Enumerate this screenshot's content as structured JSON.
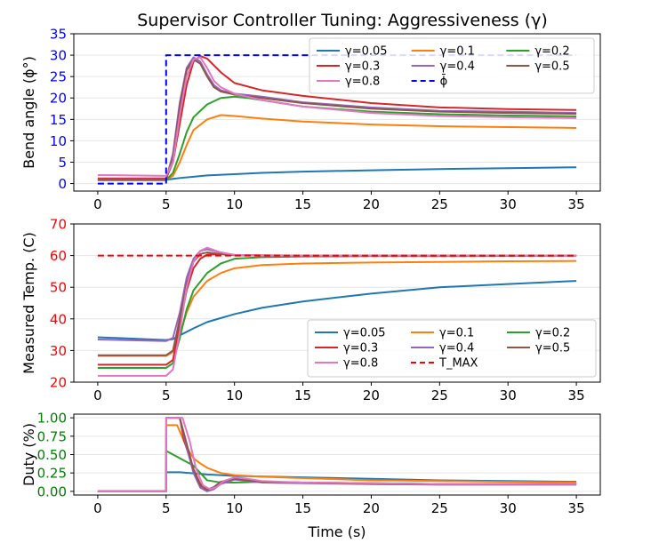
{
  "figure": {
    "title": "Supervisor Controller Tuning: Aggressiveness (γ)",
    "xlabel": "Time (s)"
  },
  "colors": {
    "g005": "#1f77b4",
    "g01": "#ff7f0e",
    "g02": "#2ca02c",
    "g03": "#d62728",
    "g04": "#9467bd",
    "g05": "#8c564b",
    "g08": "#e377c2",
    "ref_angle": "#0000ff",
    "ref_temp": "#ff0000",
    "duty_ticks": "#008000"
  },
  "chart_data": [
    {
      "type": "line",
      "id": "bend",
      "ylabel": "Bend angle (ϕ°)",
      "tick_color": "#0000ff",
      "xlim": [
        -1.75,
        36.75
      ],
      "ylim": [
        -1.75,
        35
      ],
      "xticks": [
        0,
        5,
        10,
        15,
        20,
        25,
        30,
        35
      ],
      "yticks": [
        0,
        5,
        10,
        15,
        20,
        25,
        30,
        35
      ],
      "legend": {
        "position": "top-right",
        "columns": 3
      },
      "series": [
        {
          "name": "γ=0.05",
          "color_key": "g005",
          "style": "solid",
          "x": [
            0,
            5,
            5.5,
            6,
            7,
            8,
            10,
            12,
            15,
            20,
            25,
            30,
            35
          ],
          "y": [
            0.9,
            0.9,
            1.1,
            1.3,
            1.6,
            1.9,
            2.2,
            2.5,
            2.8,
            3.1,
            3.4,
            3.6,
            3.8
          ]
        },
        {
          "name": "γ=0.1",
          "color_key": "g01",
          "style": "solid",
          "x": [
            0,
            5,
            5.5,
            6,
            6.5,
            7,
            8,
            9,
            10,
            12,
            15,
            20,
            25,
            30,
            35
          ],
          "y": [
            0.9,
            0.9,
            1.8,
            5,
            9,
            12.5,
            15,
            16,
            15.8,
            15.2,
            14.5,
            13.8,
            13.4,
            13.2,
            13
          ]
        },
        {
          "name": "γ=0.2",
          "color_key": "g02",
          "style": "solid",
          "x": [
            0,
            5,
            5.5,
            6,
            6.5,
            7,
            8,
            9,
            10,
            11,
            12,
            15,
            20,
            25,
            30,
            35
          ],
          "y": [
            0.8,
            0.8,
            2.5,
            7,
            12,
            15.5,
            18.5,
            20,
            20.3,
            20,
            19.5,
            18,
            16.8,
            16.2,
            15.9,
            15.7
          ]
        },
        {
          "name": "γ=0.3",
          "color_key": "g03",
          "style": "solid",
          "x": [
            0,
            5,
            5.5,
            6,
            6.5,
            7,
            7.5,
            8,
            9,
            10,
            12,
            15,
            20,
            25,
            30,
            35
          ],
          "y": [
            1.2,
            1.2,
            5,
            14,
            23,
            28.5,
            29.8,
            29.2,
            26,
            23.5,
            21.8,
            20.5,
            18.8,
            17.8,
            17.4,
            17.2
          ]
        },
        {
          "name": "γ=0.4",
          "color_key": "g04",
          "style": "solid",
          "x": [
            0,
            5,
            5.5,
            6,
            6.5,
            7,
            7.5,
            8,
            8.5,
            9,
            10,
            12,
            15,
            20,
            25,
            30,
            35
          ],
          "y": [
            1,
            1,
            7,
            19,
            27,
            29.5,
            28.5,
            25.5,
            23,
            21.8,
            21,
            20.3,
            19,
            17.8,
            17,
            16.8,
            16.5
          ]
        },
        {
          "name": "γ=0.5",
          "color_key": "g05",
          "style": "solid",
          "x": [
            0,
            5,
            5.5,
            6,
            6.5,
            7,
            7.5,
            8,
            8.5,
            9,
            10,
            12,
            15,
            20,
            25,
            30,
            35
          ],
          "y": [
            0.9,
            0.9,
            6,
            18,
            26.5,
            29,
            28,
            25,
            22.5,
            21.5,
            20.8,
            20,
            18.8,
            17.5,
            16.8,
            16.5,
            16.3
          ]
        },
        {
          "name": "γ=0.8",
          "color_key": "g08",
          "style": "solid",
          "x": [
            0,
            5,
            5.5,
            6,
            6.5,
            7,
            7.5,
            8,
            8.5,
            9,
            10,
            12,
            15,
            20,
            25,
            30,
            35
          ],
          "y": [
            2,
            1.8,
            5,
            16,
            25,
            29,
            29.5,
            27,
            24,
            22.5,
            21,
            19.5,
            18,
            16.5,
            15.8,
            15.5,
            15.3
          ]
        },
        {
          "name": "ϕ̄",
          "color_key": "ref_angle",
          "style": "dashed",
          "x": [
            0,
            5,
            5,
            35
          ],
          "y": [
            0,
            0,
            30,
            30
          ]
        }
      ]
    },
    {
      "type": "line",
      "id": "temp",
      "ylabel": "Measured Temp. (C)",
      "tick_color": "#ff0000",
      "xlim": [
        -1.75,
        36.75
      ],
      "ylim": [
        20,
        70
      ],
      "xticks": [
        0,
        5,
        10,
        15,
        20,
        25,
        30,
        35
      ],
      "yticks": [
        20,
        30,
        40,
        50,
        60,
        70
      ],
      "legend": {
        "position": "bottom-right",
        "columns": 3
      },
      "series": [
        {
          "name": "γ=0.05",
          "color_key": "g005",
          "style": "solid",
          "x": [
            0,
            5,
            5.5,
            6,
            7,
            8,
            10,
            12,
            15,
            20,
            25,
            30,
            35
          ],
          "y": [
            34.2,
            33.3,
            33.6,
            34.8,
            37,
            39,
            41.5,
            43.5,
            45.5,
            48,
            50,
            51,
            52
          ]
        },
        {
          "name": "γ=0.1",
          "color_key": "g01",
          "style": "solid",
          "x": [
            0,
            5,
            5.5,
            6,
            6.5,
            7,
            8,
            9,
            10,
            12,
            15,
            20,
            25,
            30,
            35
          ],
          "y": [
            28.3,
            28.3,
            29.5,
            35,
            42,
            47,
            52,
            54.5,
            56,
            57,
            57.5,
            57.8,
            58,
            58.2,
            58.3
          ]
        },
        {
          "name": "γ=0.2",
          "color_key": "g02",
          "style": "solid",
          "x": [
            0,
            5,
            5.5,
            6,
            6.5,
            7,
            8,
            9,
            10,
            12,
            15,
            20,
            25,
            30,
            35
          ],
          "y": [
            24.5,
            24.5,
            26,
            34,
            43,
            49,
            54.5,
            57.5,
            59,
            59.5,
            59.7,
            59.8,
            59.8,
            59.9,
            60
          ]
        },
        {
          "name": "γ=0.3",
          "color_key": "g03",
          "style": "solid",
          "x": [
            0,
            5,
            5.5,
            6,
            6.5,
            7,
            7.5,
            8,
            9,
            10,
            12,
            15,
            20,
            25,
            30,
            35
          ],
          "y": [
            25.5,
            25.5,
            27,
            38,
            49,
            56,
            59,
            60.3,
            60.5,
            60.2,
            60.1,
            60,
            60,
            60,
            60,
            60
          ]
        },
        {
          "name": "γ=0.4",
          "color_key": "g04",
          "style": "solid",
          "x": [
            0,
            5,
            5.5,
            6,
            6.5,
            7,
            7.5,
            8,
            9,
            10,
            12,
            15,
            20,
            25,
            30,
            35
          ],
          "y": [
            33.5,
            33,
            34,
            42,
            53,
            59,
            61.5,
            62,
            61,
            60.2,
            60,
            60,
            60,
            60,
            60,
            60
          ]
        },
        {
          "name": "γ=0.5",
          "color_key": "g05",
          "style": "solid",
          "x": [
            0,
            5,
            5.5,
            6,
            6.5,
            7,
            7.5,
            8,
            9,
            10,
            12,
            15,
            20,
            25,
            30,
            35
          ],
          "y": [
            28.5,
            28.5,
            30,
            40,
            51,
            58,
            60.5,
            61,
            60.5,
            60.1,
            60,
            60,
            60,
            60,
            60,
            60
          ]
        },
        {
          "name": "γ=0.8",
          "color_key": "g08",
          "style": "solid",
          "x": [
            0,
            5,
            5.5,
            6,
            6.5,
            7,
            7.5,
            8,
            9,
            10,
            12,
            15,
            20,
            25,
            30,
            35
          ],
          "y": [
            22,
            22,
            24,
            36,
            50,
            58,
            61.5,
            62.5,
            61,
            60.2,
            60,
            60,
            60,
            60,
            60,
            60
          ]
        },
        {
          "name": "T_MAX",
          "color_key": "ref_temp",
          "style": "dashed",
          "x": [
            0,
            35
          ],
          "y": [
            60,
            60
          ]
        }
      ]
    },
    {
      "type": "line",
      "id": "duty",
      "ylabel": "Duty (%)",
      "tick_color": "#008000",
      "xlim": [
        -1.75,
        36.75
      ],
      "ylim": [
        -0.05,
        1.05
      ],
      "xticks": [
        0,
        5,
        10,
        15,
        20,
        25,
        30,
        35
      ],
      "yticks": [
        0.0,
        0.25,
        0.5,
        0.75,
        1.0
      ],
      "ytick_labels": [
        "0.00",
        "0.25",
        "0.50",
        "0.75",
        "1.00"
      ],
      "series": [
        {
          "name": "γ=0.05",
          "color_key": "g005",
          "style": "solid",
          "x": [
            0,
            5,
            5.01,
            6,
            8,
            10,
            15,
            20,
            25,
            30,
            35
          ],
          "y": [
            0,
            0,
            0.26,
            0.26,
            0.23,
            0.21,
            0.19,
            0.17,
            0.15,
            0.14,
            0.13
          ]
        },
        {
          "name": "γ=0.1",
          "color_key": "g01",
          "style": "solid",
          "x": [
            0,
            5,
            5.01,
            5.8,
            6.5,
            7,
            7.5,
            8,
            9,
            10,
            12,
            15,
            20,
            25,
            30,
            35
          ],
          "y": [
            0,
            0,
            0.9,
            0.9,
            0.6,
            0.45,
            0.38,
            0.32,
            0.25,
            0.22,
            0.2,
            0.18,
            0.15,
            0.14,
            0.13,
            0.12
          ]
        },
        {
          "name": "γ=0.2",
          "color_key": "g02",
          "style": "solid",
          "x": [
            0,
            5,
            5.01,
            6,
            7,
            7.5,
            8,
            9,
            10,
            12,
            15,
            20,
            25,
            30,
            35
          ],
          "y": [
            0,
            0,
            0.55,
            0.45,
            0.35,
            0.25,
            0.15,
            0.12,
            0.12,
            0.13,
            0.12,
            0.11,
            0.1,
            0.1,
            0.1
          ]
        },
        {
          "name": "γ=0.3",
          "color_key": "g03",
          "style": "solid",
          "x": [
            0,
            5,
            5.01,
            6,
            6.3,
            7,
            7.5,
            8,
            8.5,
            9,
            10,
            11,
            12,
            15,
            20,
            25,
            30,
            35
          ],
          "y": [
            0,
            0,
            1,
            1,
            0.7,
            0.3,
            0.1,
            0.02,
            0.05,
            0.12,
            0.18,
            0.16,
            0.13,
            0.12,
            0.11,
            0.1,
            0.1,
            0.1
          ]
        },
        {
          "name": "γ=0.4",
          "color_key": "g04",
          "style": "solid",
          "x": [
            0,
            5,
            5.01,
            6,
            6.5,
            7,
            7.5,
            8,
            8.5,
            9,
            10,
            11,
            12,
            15,
            20,
            25,
            30,
            35
          ],
          "y": [
            0,
            0,
            1,
            1,
            0.6,
            0.25,
            0.05,
            0.0,
            0.03,
            0.1,
            0.16,
            0.14,
            0.12,
            0.11,
            0.1,
            0.09,
            0.09,
            0.09
          ]
        },
        {
          "name": "γ=0.5",
          "color_key": "g05",
          "style": "solid",
          "x": [
            0,
            5,
            5.01,
            6,
            6.5,
            7,
            7.5,
            8,
            8.5,
            9,
            10,
            11,
            12,
            15,
            20,
            25,
            30,
            35
          ],
          "y": [
            0,
            0,
            1,
            1,
            0.65,
            0.3,
            0.08,
            0.02,
            0.06,
            0.13,
            0.17,
            0.15,
            0.13,
            0.12,
            0.1,
            0.1,
            0.1,
            0.1
          ]
        },
        {
          "name": "γ=0.8",
          "color_key": "g08",
          "style": "solid",
          "x": [
            0,
            5,
            5.01,
            6.2,
            6.7,
            7.2,
            7.7,
            8.2,
            8.7,
            9.2,
            10,
            11,
            12,
            15,
            20,
            25,
            30,
            35
          ],
          "y": [
            0,
            0,
            1,
            1,
            0.7,
            0.3,
            0.08,
            0.03,
            0.06,
            0.14,
            0.19,
            0.17,
            0.14,
            0.12,
            0.11,
            0.1,
            0.1,
            0.1
          ]
        }
      ]
    }
  ]
}
